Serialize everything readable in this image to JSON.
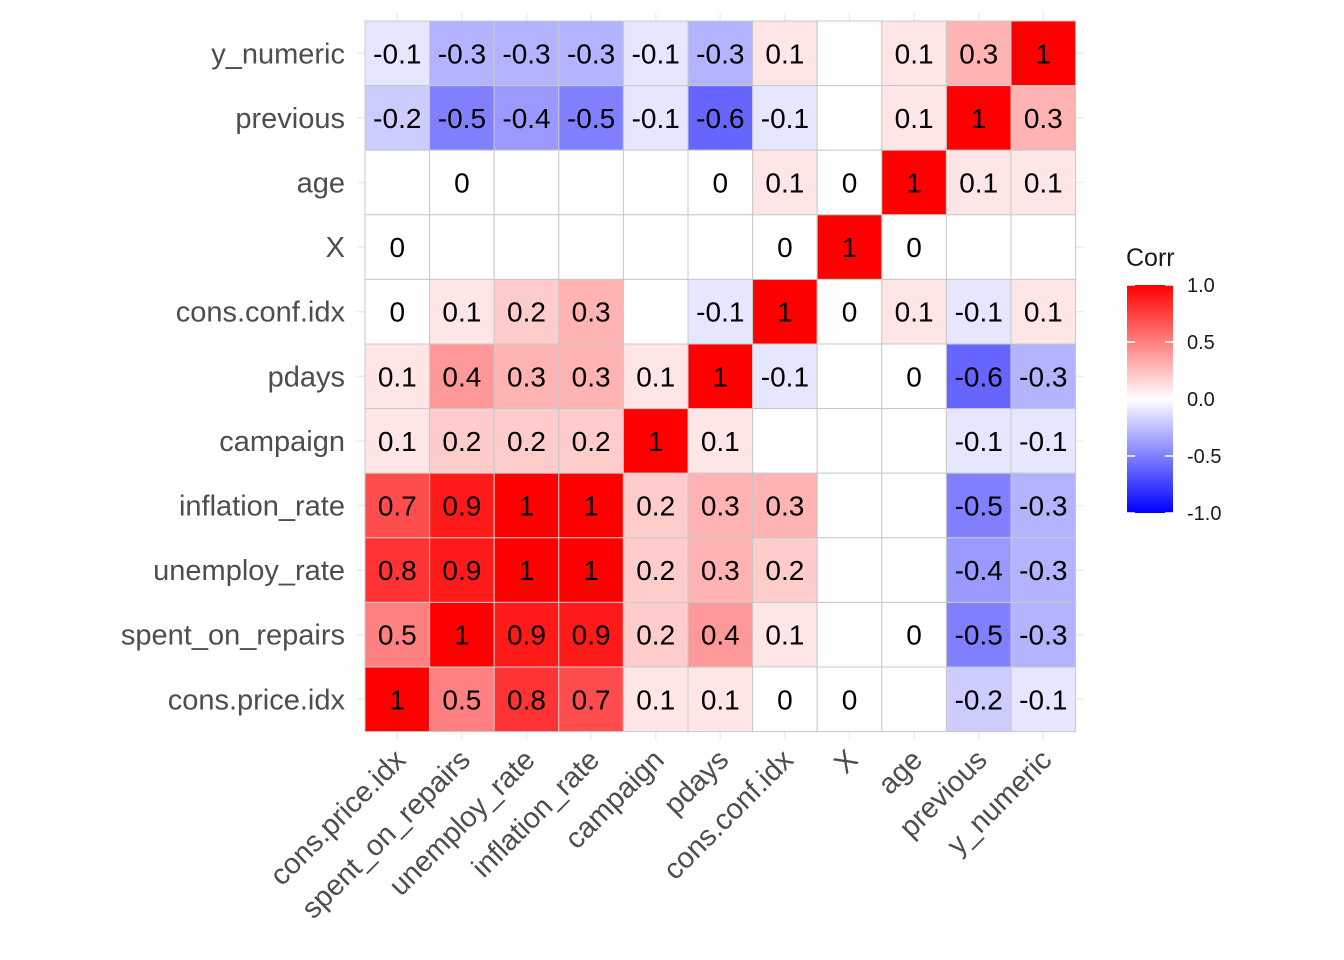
{
  "chart_data": {
    "type": "heatmap",
    "title": "",
    "xlabel": "",
    "ylabel": "",
    "variables": [
      "cons.price.idx",
      "spent_on_repairs",
      "unemploy_rate",
      "inflation_rate",
      "campaign",
      "pdays",
      "cons.conf.idx",
      "X",
      "age",
      "previous",
      "y_numeric"
    ],
    "rows_top_to_bottom": [
      "y_numeric",
      "previous",
      "age",
      "X",
      "cons.conf.idx",
      "pdays",
      "campaign",
      "inflation_rate",
      "unemploy_rate",
      "spent_on_repairs",
      "cons.price.idx"
    ],
    "matrix": [
      [
        -0.1,
        -0.3,
        -0.3,
        -0.3,
        -0.1,
        -0.3,
        0.1,
        null,
        0.1,
        0.3,
        1
      ],
      [
        -0.2,
        -0.5,
        -0.4,
        -0.5,
        -0.1,
        -0.6,
        -0.1,
        null,
        0.1,
        1,
        0.3
      ],
      [
        null,
        0,
        null,
        null,
        null,
        0,
        0.1,
        0,
        1,
        0.1,
        0.1
      ],
      [
        0,
        null,
        null,
        null,
        null,
        null,
        0,
        1,
        0,
        null,
        null
      ],
      [
        0,
        0.1,
        0.2,
        0.3,
        null,
        -0.1,
        1,
        0,
        0.1,
        -0.1,
        0.1
      ],
      [
        0.1,
        0.4,
        0.3,
        0.3,
        0.1,
        1,
        -0.1,
        null,
        0,
        -0.6,
        -0.3
      ],
      [
        0.1,
        0.2,
        0.2,
        0.2,
        1,
        0.1,
        null,
        null,
        null,
        -0.1,
        -0.1
      ],
      [
        0.7,
        0.9,
        1,
        1,
        0.2,
        0.3,
        0.3,
        null,
        null,
        -0.5,
        -0.3
      ],
      [
        0.8,
        0.9,
        1,
        1,
        0.2,
        0.3,
        0.2,
        null,
        null,
        -0.4,
        -0.3
      ],
      [
        0.5,
        1,
        0.9,
        0.9,
        0.2,
        0.4,
        0.1,
        null,
        0,
        -0.5,
        -0.3
      ],
      [
        1,
        0.5,
        0.8,
        0.7,
        0.1,
        0.1,
        0,
        0,
        null,
        -0.2,
        -0.1
      ]
    ],
    "color_scale": {
      "low": "#0000ff",
      "mid": "#ffffff",
      "high": "#ff0000",
      "domain": [
        -1,
        1
      ]
    },
    "legend": {
      "title": "Corr",
      "position": "right",
      "tick_labels": [
        "1.0",
        "0.5",
        "0.0",
        "-0.5",
        "-1.0"
      ],
      "tick_values": [
        1.0,
        0.5,
        0.0,
        -0.5,
        -1.0
      ]
    },
    "grid": true
  }
}
